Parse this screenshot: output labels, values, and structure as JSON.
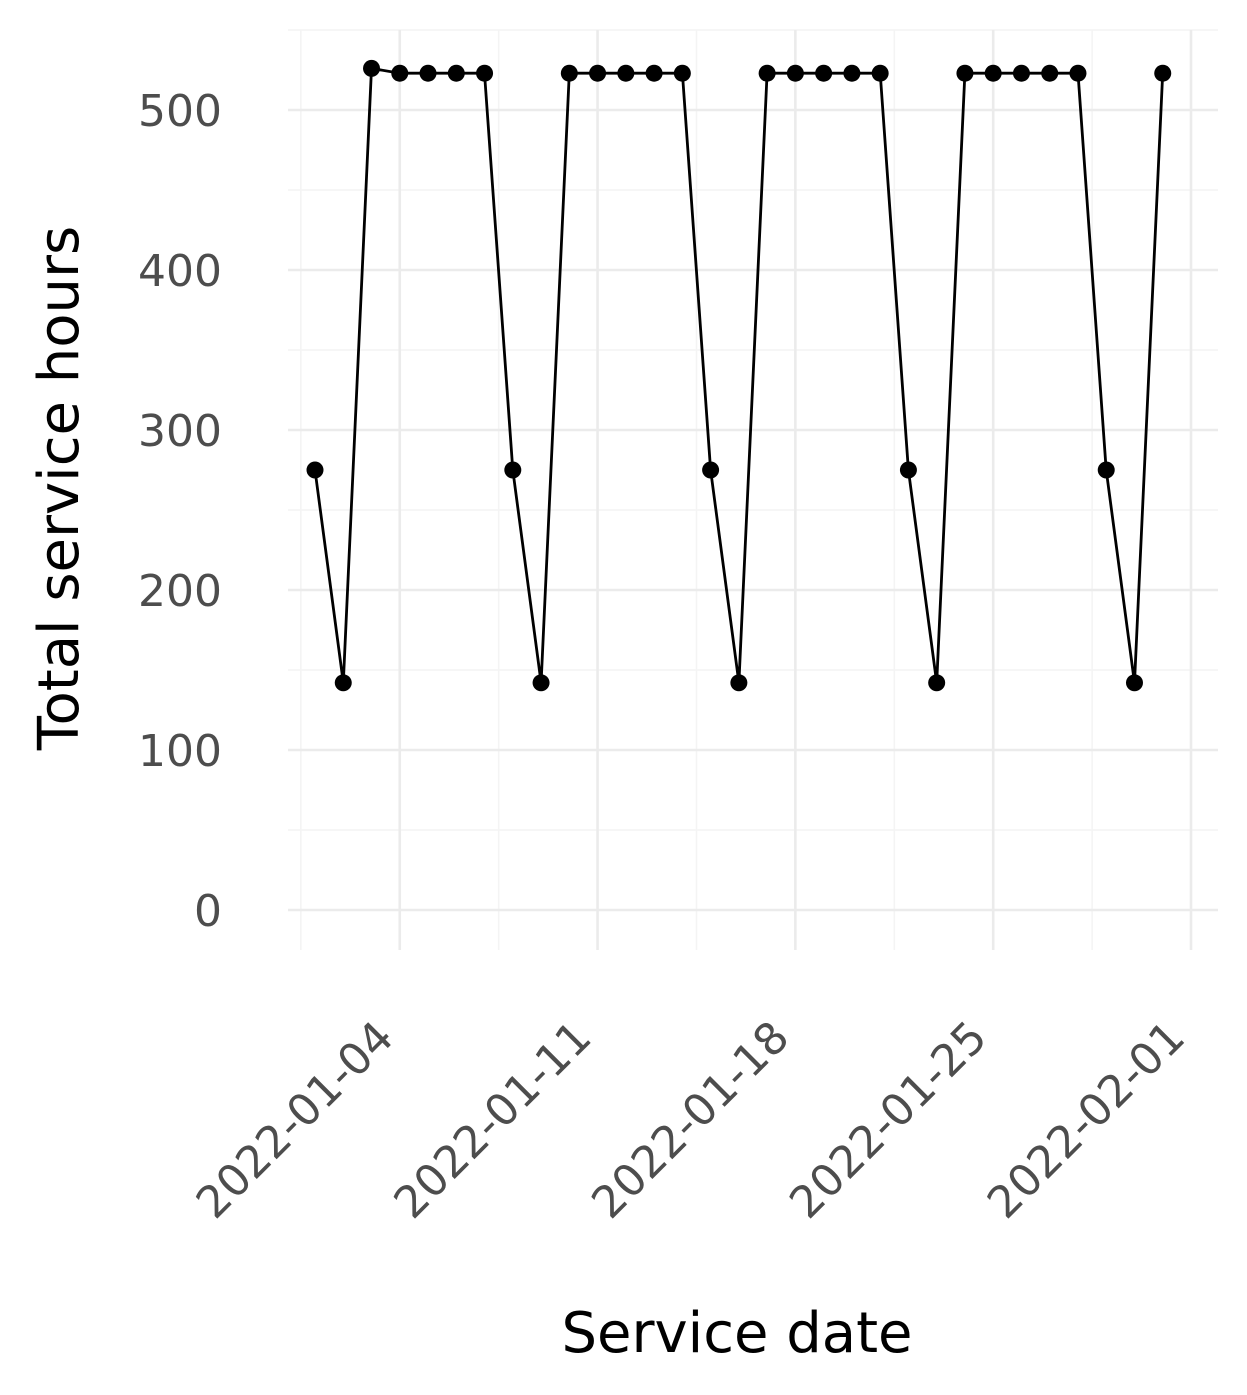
{
  "chart_data": {
    "type": "line",
    "title": "",
    "xlabel": "Service date",
    "ylabel": "Total service hours",
    "x_type": "date",
    "xlim": [
      "2022-01-01",
      "2022-02-01"
    ],
    "ylim": [
      -25,
      550
    ],
    "x_ticks": [
      "2022-01-04",
      "2022-01-11",
      "2022-01-18",
      "2022-01-25",
      "2022-02-01"
    ],
    "y_ticks": [
      0,
      100,
      200,
      300,
      400,
      500
    ],
    "grid": true,
    "legend": "none",
    "markers": true,
    "series": [
      {
        "color": "#000000",
        "x": [
          "2022-01-01",
          "2022-01-02",
          "2022-01-03",
          "2022-01-04",
          "2022-01-05",
          "2022-01-06",
          "2022-01-07",
          "2022-01-08",
          "2022-01-09",
          "2022-01-10",
          "2022-01-11",
          "2022-01-12",
          "2022-01-13",
          "2022-01-14",
          "2022-01-15",
          "2022-01-16",
          "2022-01-17",
          "2022-01-18",
          "2022-01-19",
          "2022-01-20",
          "2022-01-21",
          "2022-01-22",
          "2022-01-23",
          "2022-01-24",
          "2022-01-25",
          "2022-01-26",
          "2022-01-27",
          "2022-01-28",
          "2022-01-29",
          "2022-01-30",
          "2022-01-31"
        ],
        "y": [
          275,
          142,
          526,
          523,
          523,
          523,
          523,
          275,
          142,
          523,
          523,
          523,
          523,
          523,
          275,
          142,
          523,
          523,
          523,
          523,
          523,
          275,
          142,
          523,
          523,
          523,
          523,
          523,
          275,
          142,
          523
        ]
      }
    ]
  }
}
